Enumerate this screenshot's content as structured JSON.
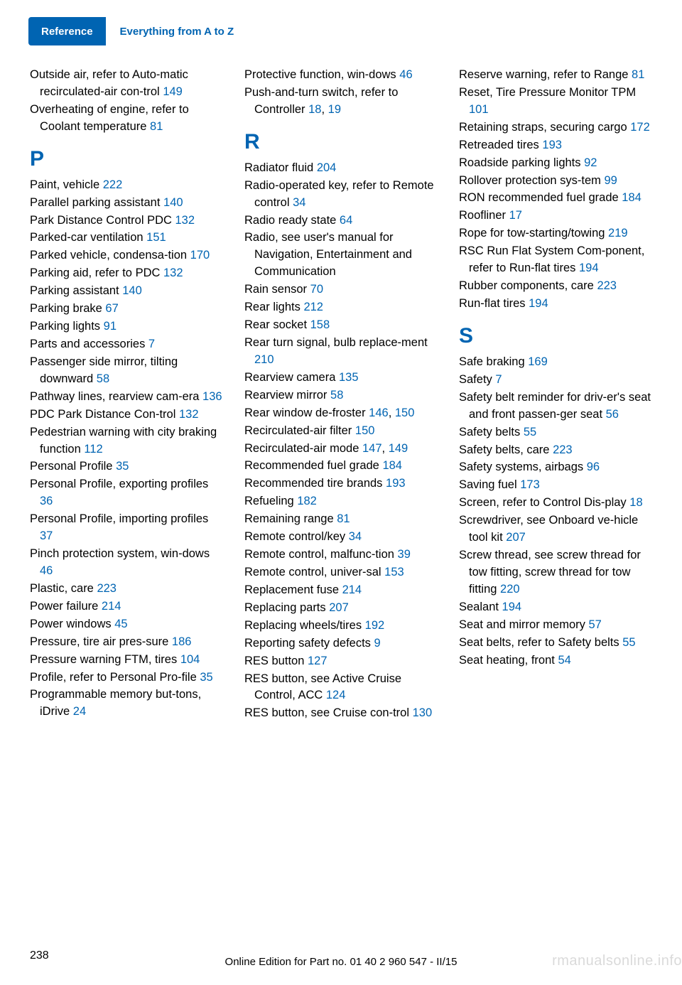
{
  "header": {
    "tab_filled": "Reference",
    "tab_outline": "Everything from A to Z"
  },
  "columns": [
    {
      "groups": [
        {
          "letter": null,
          "entries": [
            {
              "text": "Outside air, refer to Auto‐matic recirculated-air con‐trol ",
              "pages": [
                "149"
              ]
            },
            {
              "text": "Overheating of engine, refer to Coolant temperature ",
              "pages": [
                "81"
              ]
            }
          ]
        },
        {
          "letter": "P",
          "entries": [
            {
              "text": "Paint, vehicle ",
              "pages": [
                "222"
              ]
            },
            {
              "text": "Parallel parking assistant ",
              "pages": [
                "140"
              ]
            },
            {
              "text": "Park Distance Control PDC ",
              "pages": [
                "132"
              ]
            },
            {
              "text": "Parked-car ventilation ",
              "pages": [
                "151"
              ]
            },
            {
              "text": "Parked vehicle, condensa‐tion ",
              "pages": [
                "170"
              ]
            },
            {
              "text": "Parking aid, refer to PDC ",
              "pages": [
                "132"
              ]
            },
            {
              "text": "Parking assistant ",
              "pages": [
                "140"
              ]
            },
            {
              "text": "Parking brake ",
              "pages": [
                "67"
              ]
            },
            {
              "text": "Parking lights ",
              "pages": [
                "91"
              ]
            },
            {
              "text": "Parts and accessories ",
              "pages": [
                "7"
              ]
            },
            {
              "text": "Passenger side mirror, tilting downward ",
              "pages": [
                "58"
              ]
            },
            {
              "text": "Pathway lines, rearview cam‐era ",
              "pages": [
                "136"
              ]
            },
            {
              "text": "PDC Park Distance Con‐trol ",
              "pages": [
                "132"
              ]
            },
            {
              "text": "Pedestrian warning with city braking function ",
              "pages": [
                "112"
              ]
            },
            {
              "text": "Personal Profile ",
              "pages": [
                "35"
              ]
            },
            {
              "text": "Personal Profile, exporting profiles ",
              "pages": [
                "36"
              ]
            },
            {
              "text": "Personal Profile, importing profiles ",
              "pages": [
                "37"
              ]
            },
            {
              "text": "Pinch protection system, win‐dows ",
              "pages": [
                "46"
              ]
            },
            {
              "text": "Plastic, care ",
              "pages": [
                "223"
              ]
            },
            {
              "text": "Power failure ",
              "pages": [
                "214"
              ]
            },
            {
              "text": "Power windows ",
              "pages": [
                "45"
              ]
            },
            {
              "text": "Pressure, tire air pres‐sure ",
              "pages": [
                "186"
              ]
            },
            {
              "text": "Pressure warning FTM, tires ",
              "pages": [
                "104"
              ]
            },
            {
              "text": "Profile, refer to Personal Pro‐file ",
              "pages": [
                "35"
              ]
            },
            {
              "text": "Programmable memory but‐tons, iDrive ",
              "pages": [
                "24"
              ]
            }
          ]
        }
      ]
    },
    {
      "groups": [
        {
          "letter": null,
          "entries": [
            {
              "text": "Protective function, win‐dows ",
              "pages": [
                "46"
              ]
            },
            {
              "text": "Push-and-turn switch, refer to Controller ",
              "pages": [
                "18",
                "19"
              ]
            }
          ]
        },
        {
          "letter": "R",
          "entries": [
            {
              "text": "Radiator fluid ",
              "pages": [
                "204"
              ]
            },
            {
              "text": "Radio-operated key, refer to Remote control ",
              "pages": [
                "34"
              ]
            },
            {
              "text": "Radio ready state ",
              "pages": [
                "64"
              ]
            },
            {
              "text": "Radio, see user's manual for Navigation, Entertainment and Communication",
              "pages": []
            },
            {
              "text": "Rain sensor ",
              "pages": [
                "70"
              ]
            },
            {
              "text": "Rear lights ",
              "pages": [
                "212"
              ]
            },
            {
              "text": "Rear socket ",
              "pages": [
                "158"
              ]
            },
            {
              "text": "Rear turn signal, bulb replace‐ment ",
              "pages": [
                "210"
              ]
            },
            {
              "text": "Rearview camera ",
              "pages": [
                "135"
              ]
            },
            {
              "text": "Rearview mirror ",
              "pages": [
                "58"
              ]
            },
            {
              "text": "Rear window de‐froster ",
              "pages": [
                "146",
                "150"
              ]
            },
            {
              "text": "Recirculated-air filter ",
              "pages": [
                "150"
              ]
            },
            {
              "text": "Recirculated-air mode ",
              "pages": [
                "147",
                "149"
              ]
            },
            {
              "text": "Recommended fuel grade ",
              "pages": [
                "184"
              ]
            },
            {
              "text": "Recommended tire brands ",
              "pages": [
                "193"
              ]
            },
            {
              "text": "Refueling ",
              "pages": [
                "182"
              ]
            },
            {
              "text": "Remaining range ",
              "pages": [
                "81"
              ]
            },
            {
              "text": "Remote control/key ",
              "pages": [
                "34"
              ]
            },
            {
              "text": "Remote control, malfunc‐tion ",
              "pages": [
                "39"
              ]
            },
            {
              "text": "Remote control, univer‐sal ",
              "pages": [
                "153"
              ]
            },
            {
              "text": "Replacement fuse ",
              "pages": [
                "214"
              ]
            },
            {
              "text": "Replacing parts ",
              "pages": [
                "207"
              ]
            },
            {
              "text": "Replacing wheels/tires ",
              "pages": [
                "192"
              ]
            },
            {
              "text": "Reporting safety defects ",
              "pages": [
                "9"
              ]
            },
            {
              "text": "RES button ",
              "pages": [
                "127"
              ]
            },
            {
              "text": "RES button, see Active Cruise Control, ACC ",
              "pages": [
                "124"
              ]
            },
            {
              "text": "RES button, see Cruise con‐trol ",
              "pages": [
                "130"
              ]
            }
          ]
        }
      ]
    },
    {
      "groups": [
        {
          "letter": null,
          "entries": [
            {
              "text": "Reserve warning, refer to Range ",
              "pages": [
                "81"
              ]
            },
            {
              "text": "Reset, Tire Pressure Monitor TPM ",
              "pages": [
                "101"
              ]
            },
            {
              "text": "Retaining straps, securing cargo ",
              "pages": [
                "172"
              ]
            },
            {
              "text": "Retreaded tires ",
              "pages": [
                "193"
              ]
            },
            {
              "text": "Roadside parking lights ",
              "pages": [
                "92"
              ]
            },
            {
              "text": "Rollover protection sys‐tem ",
              "pages": [
                "99"
              ]
            },
            {
              "text": "RON recommended fuel grade ",
              "pages": [
                "184"
              ]
            },
            {
              "text": "Roofliner ",
              "pages": [
                "17"
              ]
            },
            {
              "text": "Rope for tow-starting/towing ",
              "pages": [
                "219"
              ]
            },
            {
              "text": "RSC Run Flat System Com‐ponent, refer to Run-flat tires ",
              "pages": [
                "194"
              ]
            },
            {
              "text": "Rubber components, care ",
              "pages": [
                "223"
              ]
            },
            {
              "text": "Run-flat tires ",
              "pages": [
                "194"
              ]
            }
          ]
        },
        {
          "letter": "S",
          "entries": [
            {
              "text": "Safe braking ",
              "pages": [
                "169"
              ]
            },
            {
              "text": "Safety ",
              "pages": [
                "7"
              ]
            },
            {
              "text": "Safety belt reminder for driv‐er's seat and front passen‐ger seat ",
              "pages": [
                "56"
              ]
            },
            {
              "text": "Safety belts ",
              "pages": [
                "55"
              ]
            },
            {
              "text": "Safety belts, care ",
              "pages": [
                "223"
              ]
            },
            {
              "text": "Safety systems, airbags ",
              "pages": [
                "96"
              ]
            },
            {
              "text": "Saving fuel ",
              "pages": [
                "173"
              ]
            },
            {
              "text": "Screen, refer to Control Dis‐play ",
              "pages": [
                "18"
              ]
            },
            {
              "text": "Screwdriver, see Onboard ve‐hicle tool kit ",
              "pages": [
                "207"
              ]
            },
            {
              "text": "Screw thread, see screw thread for tow fitting, screw thread for tow fitting ",
              "pages": [
                "220"
              ]
            },
            {
              "text": "Sealant ",
              "pages": [
                "194"
              ]
            },
            {
              "text": "Seat and mirror memory ",
              "pages": [
                "57"
              ]
            },
            {
              "text": "Seat belts, refer to Safety belts ",
              "pages": [
                "55"
              ]
            },
            {
              "text": "Seat heating, front ",
              "pages": [
                "54"
              ]
            }
          ]
        }
      ]
    }
  ],
  "footer": {
    "page_no": "238",
    "center": "Online Edition for Part no. 01 40 2 960 547 - II/15",
    "watermark": "rmanualsonline.info"
  },
  "colors": {
    "brand": "#0064b2",
    "text": "#000000",
    "bg": "#ffffff"
  }
}
